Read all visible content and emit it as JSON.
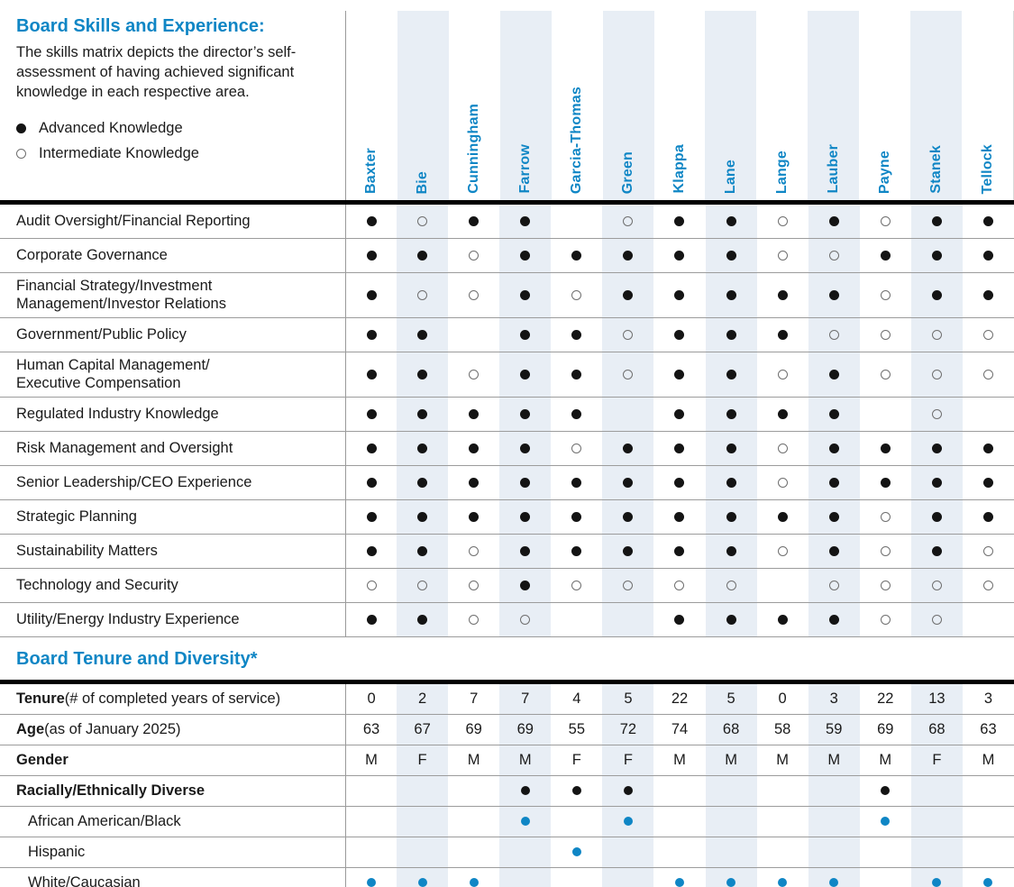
{
  "colors": {
    "accent_blue": "#0f86c5",
    "band_blue": "#e8eef5",
    "rule_black": "#000000",
    "grid_gray": "#9c9c9c",
    "dot_black": "#141414",
    "circle_gray": "#6f6f6f"
  },
  "directors": [
    "Baxter",
    "Bie",
    "Cunningham",
    "Farrow",
    "Garcia-Thomas",
    "Green",
    "Klappa",
    "Lane",
    "Lange",
    "Lauber",
    "Payne",
    "Stanek",
    "Tellock"
  ],
  "skills_section": {
    "title": "Board Skills and Experience:",
    "description": "The skills matrix depicts the director’s self-assessment of having achieved significant knowledge in each respective area.",
    "legend": [
      {
        "key": "advanced",
        "label": "Advanced Knowledge"
      },
      {
        "key": "intermediate",
        "label": "Intermediate Knowledge"
      }
    ],
    "rows": [
      {
        "label": "Audit Oversight/Financial Reporting",
        "values": [
          "adv",
          "int",
          "adv",
          "adv",
          "",
          "int",
          "adv",
          "adv",
          "int",
          "adv",
          "int",
          "adv",
          "adv"
        ]
      },
      {
        "label": "Corporate Governance",
        "values": [
          "adv",
          "adv",
          "int",
          "adv",
          "adv",
          "adv",
          "adv",
          "adv",
          "int",
          "int",
          "adv",
          "adv",
          "adv"
        ]
      },
      {
        "label": "Financial Strategy/Investment\nManagement/Investor Relations",
        "values": [
          "adv",
          "int",
          "int",
          "adv",
          "int",
          "adv",
          "adv",
          "adv",
          "adv",
          "adv",
          "int",
          "adv",
          "adv"
        ]
      },
      {
        "label": "Government/Public Policy",
        "values": [
          "adv",
          "adv",
          "",
          "adv",
          "adv",
          "int",
          "adv",
          "adv",
          "adv",
          "int",
          "int",
          "int",
          "int"
        ]
      },
      {
        "label": "Human Capital Management/\nExecutive Compensation",
        "values": [
          "adv",
          "adv",
          "int",
          "adv",
          "adv",
          "int",
          "adv",
          "adv",
          "int",
          "adv",
          "int",
          "int",
          "int"
        ]
      },
      {
        "label": "Regulated Industry Knowledge",
        "values": [
          "adv",
          "adv",
          "adv",
          "adv",
          "adv",
          "",
          "adv",
          "adv",
          "adv",
          "adv",
          "",
          "int",
          ""
        ]
      },
      {
        "label": "Risk Management and Oversight",
        "values": [
          "adv",
          "adv",
          "adv",
          "adv",
          "int",
          "adv",
          "adv",
          "adv",
          "int",
          "adv",
          "adv",
          "adv",
          "adv"
        ]
      },
      {
        "label": "Senior Leadership/CEO Experience",
        "values": [
          "adv",
          "adv",
          "adv",
          "adv",
          "adv",
          "adv",
          "adv",
          "adv",
          "int",
          "adv",
          "adv",
          "adv",
          "adv"
        ]
      },
      {
        "label": "Strategic Planning",
        "values": [
          "adv",
          "adv",
          "adv",
          "adv",
          "adv",
          "adv",
          "adv",
          "adv",
          "adv",
          "adv",
          "int",
          "adv",
          "adv"
        ]
      },
      {
        "label": "Sustainability Matters",
        "values": [
          "adv",
          "adv",
          "int",
          "adv",
          "adv",
          "adv",
          "adv",
          "adv",
          "int",
          "adv",
          "int",
          "adv",
          "int"
        ]
      },
      {
        "label": "Technology and Security",
        "values": [
          "int",
          "int",
          "int",
          "adv",
          "int",
          "int",
          "int",
          "int",
          "",
          "int",
          "int",
          "int",
          "int"
        ]
      },
      {
        "label": "Utility/Energy Industry Experience",
        "values": [
          "adv",
          "adv",
          "int",
          "int",
          "",
          "",
          "adv",
          "adv",
          "adv",
          "adv",
          "int",
          "int",
          ""
        ]
      }
    ]
  },
  "tenure_section": {
    "title": "Board Tenure and Diversity*",
    "rows": [
      {
        "bold": "Tenure",
        "rest": " (# of completed years of service)",
        "type": "text",
        "values": [
          "0",
          "2",
          "7",
          "7",
          "4",
          "5",
          "22",
          "5",
          "0",
          "3",
          "22",
          "13",
          "3"
        ]
      },
      {
        "bold": "Age",
        "rest": " (as of January 2025)",
        "type": "text",
        "values": [
          "63",
          "67",
          "69",
          "69",
          "55",
          "72",
          "74",
          "68",
          "58",
          "59",
          "69",
          "68",
          "63"
        ]
      },
      {
        "bold": "Gender",
        "rest": "",
        "type": "text",
        "values": [
          "M",
          "F",
          "M",
          "M",
          "F",
          "F",
          "M",
          "M",
          "M",
          "M",
          "M",
          "F",
          "M"
        ]
      },
      {
        "bold": "Racially/Ethnically Diverse",
        "rest": "",
        "type": "dot",
        "dot_color": "black",
        "values": [
          "",
          "",
          "",
          "dot",
          "dot",
          "dot",
          "",
          "",
          "",
          "",
          "dot",
          "",
          ""
        ]
      },
      {
        "label": "African American/Black",
        "indent": true,
        "type": "dot",
        "dot_color": "blue",
        "values": [
          "",
          "",
          "",
          "dot",
          "",
          "dot",
          "",
          "",
          "",
          "",
          "dot",
          "",
          ""
        ]
      },
      {
        "label": "Hispanic",
        "indent": true,
        "type": "dot",
        "dot_color": "blue",
        "values": [
          "",
          "",
          "",
          "",
          "dot",
          "",
          "",
          "",
          "",
          "",
          "",
          "",
          ""
        ]
      },
      {
        "label": "White/Caucasian",
        "indent": true,
        "type": "dot",
        "dot_color": "blue",
        "values": [
          "dot",
          "dot",
          "dot",
          "",
          "",
          "",
          "dot",
          "dot",
          "dot",
          "dot",
          "",
          "dot",
          "dot"
        ]
      }
    ]
  }
}
